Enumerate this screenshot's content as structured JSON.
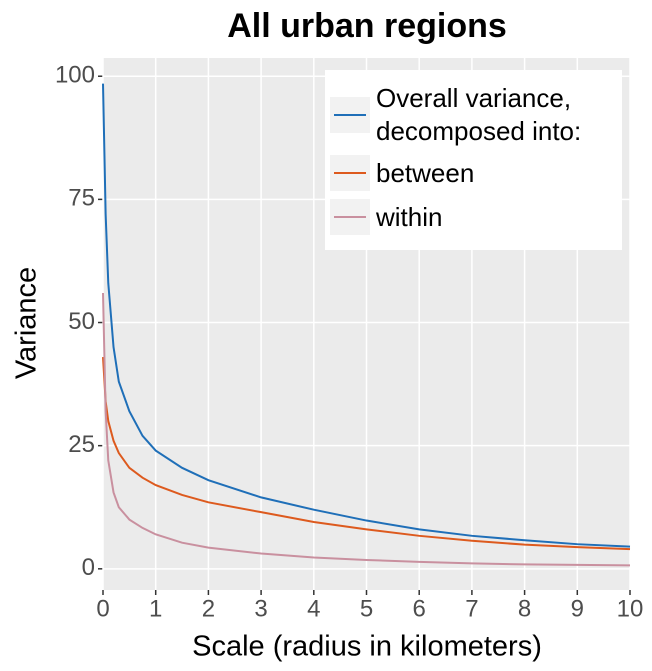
{
  "chart_data": {
    "type": "line",
    "title": "All urban regions",
    "x_label": "Scale (radius in kilometers)",
    "y_label": "Variance",
    "x": [
      0,
      0.05,
      0.1,
      0.2,
      0.3,
      0.5,
      0.75,
      1,
      1.5,
      2,
      3,
      4,
      5,
      6,
      7,
      8,
      9,
      10
    ],
    "series": [
      {
        "name": "Overall variance, decomposed into:",
        "color": "#1f6fb8",
        "values": [
          98.5,
          72,
          58,
          45,
          38,
          32,
          27,
          24,
          20.5,
          18,
          14.5,
          12,
          9.8,
          8,
          6.7,
          5.8,
          5,
          4.5
        ]
      },
      {
        "name": "between",
        "color": "#dd5a1e",
        "values": [
          43,
          34,
          30,
          26,
          23.5,
          20.5,
          18.5,
          17,
          15,
          13.5,
          11.5,
          9.5,
          8,
          6.7,
          5.7,
          4.9,
          4.4,
          4
        ]
      },
      {
        "name": "within",
        "color": "#c9909f",
        "values": [
          56,
          32,
          22,
          15.5,
          12.5,
          10,
          8.3,
          7,
          5.3,
          4.3,
          3.1,
          2.3,
          1.8,
          1.4,
          1.1,
          0.9,
          0.8,
          0.7
        ]
      }
    ],
    "xlim": [
      0,
      10
    ],
    "xticks": [
      0,
      1,
      2,
      3,
      4,
      5,
      6,
      7,
      8,
      9,
      10
    ],
    "ylim": [
      -4.3,
      103.7
    ],
    "yticks": [
      0,
      25,
      50,
      75,
      100
    ],
    "grid": true,
    "legend_position": "top-right"
  }
}
